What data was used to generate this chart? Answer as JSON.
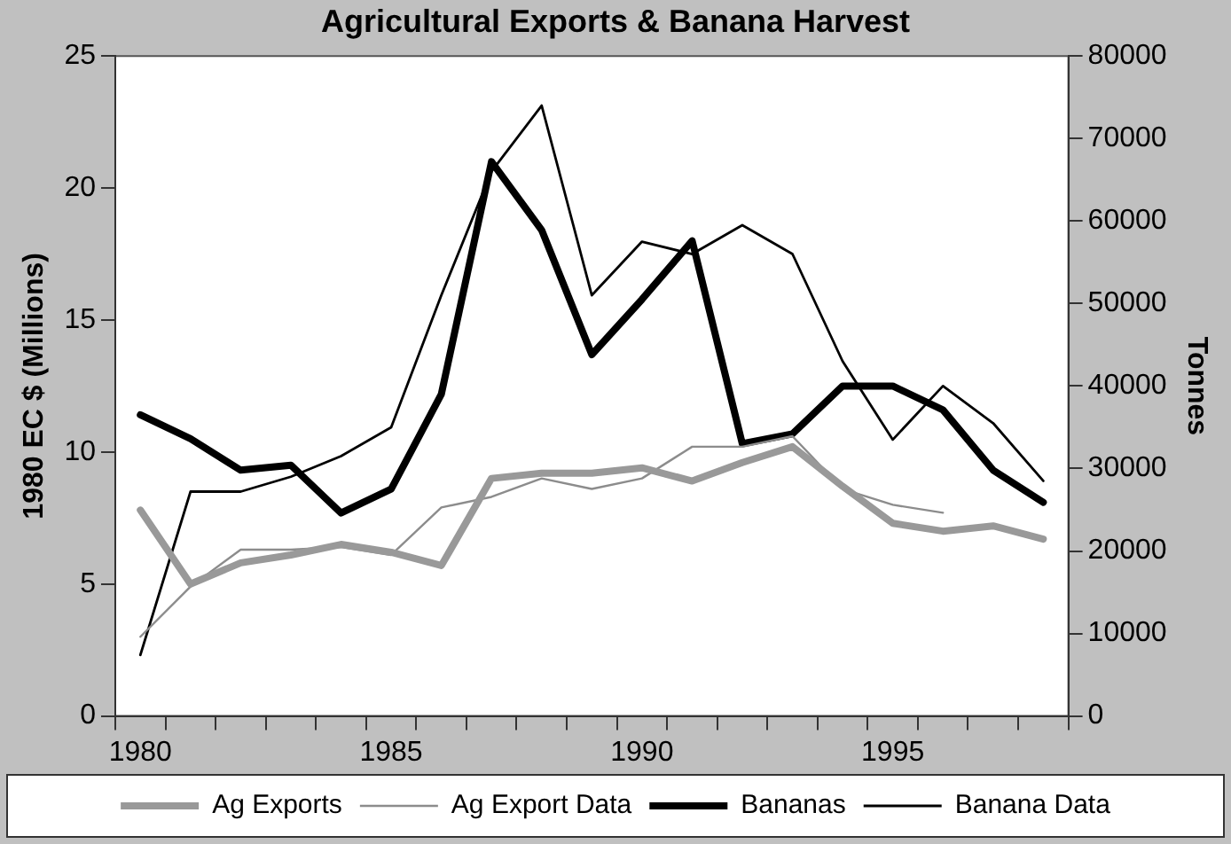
{
  "chart_data": {
    "type": "line",
    "title": "Agricultural Exports & Banana Harvest",
    "ylabel": "1980 EC $ (Millions)",
    "y2label": "Tonnes",
    "categories": [
      "1980",
      null,
      null,
      null,
      null,
      "1985",
      null,
      null,
      null,
      null,
      "1990",
      null,
      null,
      null,
      null,
      "1995",
      null,
      null,
      null
    ],
    "series": [
      {
        "name": "Ag Exports",
        "color": "#999999",
        "values": [
          7.8,
          5.0,
          5.8,
          6.1,
          6.5,
          6.2,
          5.7,
          9.0,
          9.2,
          9.2,
          9.4,
          8.9,
          9.6,
          10.2,
          8.7,
          7.3,
          7.0,
          7.2,
          6.7
        ]
      },
      {
        "name": "Ag Export Data",
        "color": "#8c8c8c",
        "values": [
          3.0,
          4.9,
          6.3,
          6.3,
          6.4,
          6.1,
          7.9,
          8.3,
          9.0,
          8.6,
          9.0,
          10.2,
          10.2,
          10.6,
          8.6,
          8.0,
          7.7,
          null,
          null
        ]
      },
      {
        "name": "Bananas",
        "color": "#000000",
        "axis": "y2",
        "values": [
          36500,
          33600,
          29800,
          30400,
          24600,
          27500,
          39000,
          67200,
          58900,
          43800,
          50500,
          57600,
          33000,
          34200,
          40000,
          40000,
          37100,
          29800,
          25900
        ]
      },
      {
        "name": "Banana Data",
        "color": "#000000",
        "axis": "y2",
        "values": [
          7400,
          27200,
          27200,
          29000,
          31500,
          35000,
          51000,
          66000,
          74000,
          51000,
          57500,
          56000,
          59500,
          56000,
          43000,
          33500,
          40000,
          35500,
          28500
        ]
      }
    ],
    "ylim": [
      0,
      25
    ],
    "yticks": [
      0,
      5,
      10,
      15,
      20,
      25
    ],
    "y2lim": [
      0,
      80000
    ],
    "y2ticks": [
      0,
      10000,
      20000,
      30000,
      40000,
      50000,
      60000,
      70000,
      80000
    ],
    "grid": false,
    "legend": "bottom",
    "marker": "none",
    "line_style": "solid"
  }
}
